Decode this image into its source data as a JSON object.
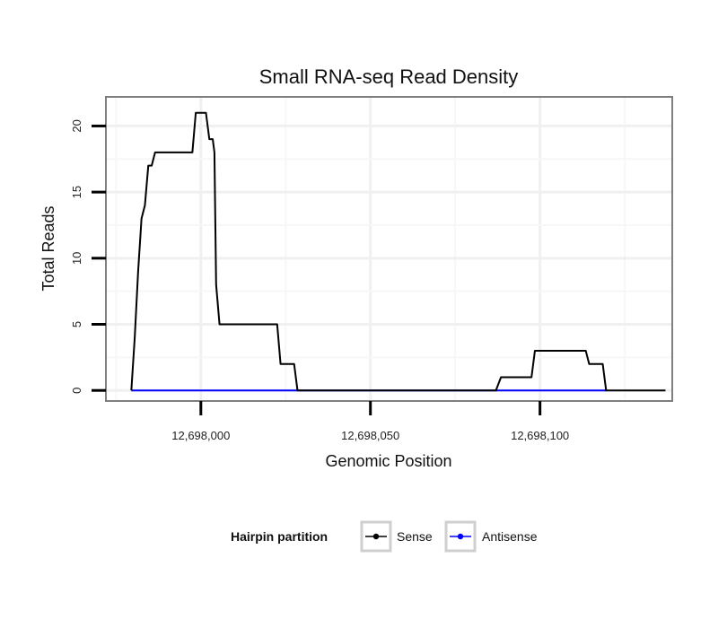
{
  "chart_data": {
    "type": "line",
    "title": "Small RNA-seq Read Density",
    "xlabel": "Genomic Position",
    "ylabel": "Total Reads",
    "xlim": [
      12697972,
      12698139
    ],
    "ylim": [
      -0.8,
      22.2
    ],
    "x_ticks": [
      12698000,
      12698050,
      12698100
    ],
    "x_tick_labels": [
      "12,698,000",
      "12,698,050",
      "12,698,100"
    ],
    "y_ticks": [
      0,
      5,
      10,
      15,
      20
    ],
    "y_tick_labels": [
      "0",
      "5",
      "10",
      "15",
      "20"
    ],
    "grid": true,
    "legend": {
      "title": "Hairpin partition",
      "position": "bottom"
    },
    "series": [
      {
        "name": "Sense",
        "color": "#000000",
        "points": [
          [
            12697979.5,
            0
          ],
          [
            12697980.5,
            4
          ],
          [
            12697981.5,
            9
          ],
          [
            12697982.5,
            13
          ],
          [
            12697983.5,
            14
          ],
          [
            12697984.5,
            17
          ],
          [
            12697985.5,
            17
          ],
          [
            12697986.5,
            18
          ],
          [
            12697987.5,
            18
          ],
          [
            12697989,
            18
          ],
          [
            12697994,
            18
          ],
          [
            12697997.5,
            18
          ],
          [
            12697998.5,
            21
          ],
          [
            12698001.5,
            21
          ],
          [
            12698002.5,
            19
          ],
          [
            12698003.5,
            19
          ],
          [
            12698004,
            18
          ],
          [
            12698004.5,
            8
          ],
          [
            12698005.5,
            5
          ],
          [
            12698022.5,
            5
          ],
          [
            12698023.5,
            2
          ],
          [
            12698027.5,
            2
          ],
          [
            12698028.5,
            0
          ],
          [
            12698087,
            0
          ],
          [
            12698088.5,
            1
          ],
          [
            12698097.5,
            1
          ],
          [
            12698098.5,
            3
          ],
          [
            12698113.5,
            3
          ],
          [
            12698114.5,
            2
          ],
          [
            12698118.5,
            2
          ],
          [
            12698119.5,
            0
          ],
          [
            12698137,
            0
          ]
        ]
      },
      {
        "name": "Antisense",
        "color": "#0000ff",
        "points": [
          [
            12697979.5,
            0
          ],
          [
            12698119.5,
            0
          ]
        ]
      }
    ]
  }
}
